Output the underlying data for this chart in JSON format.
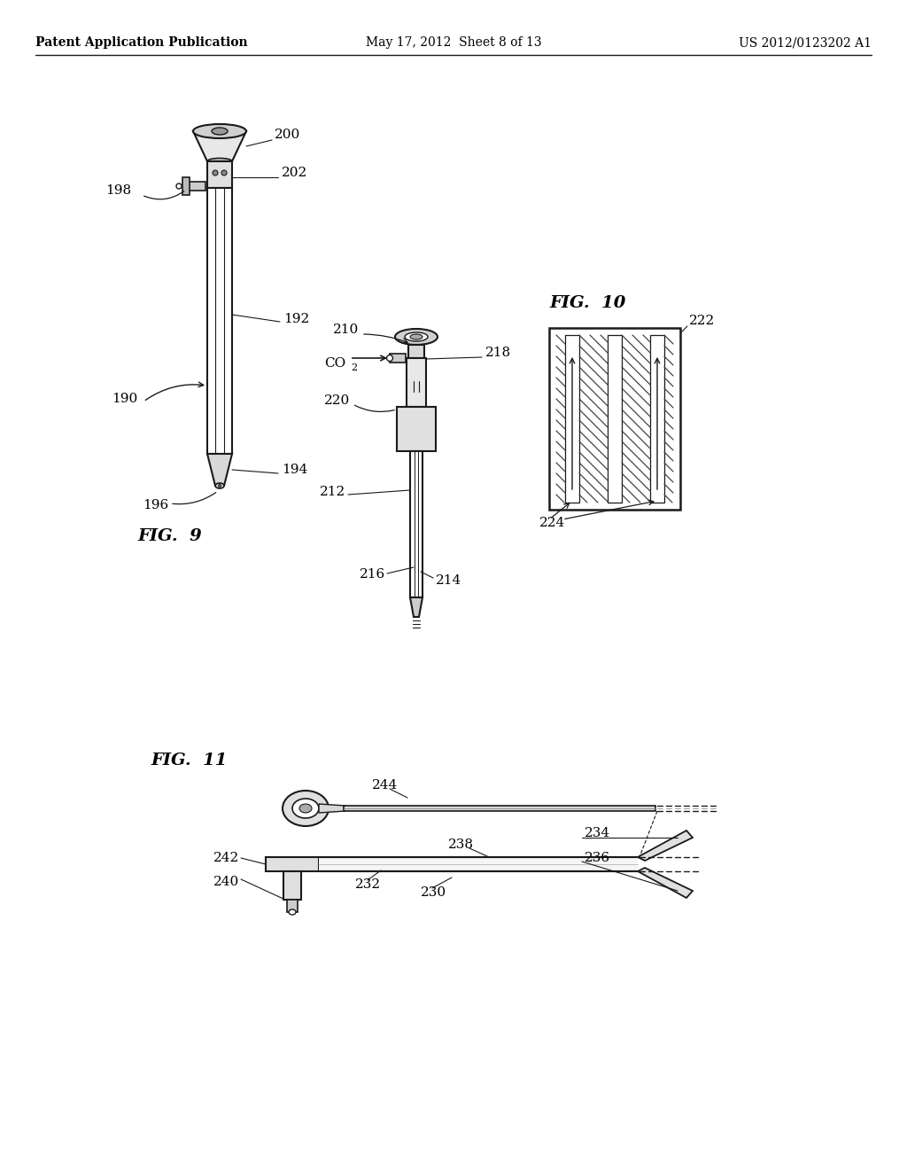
{
  "background_color": "#ffffff",
  "header_left": "Patent Application Publication",
  "header_center": "May 17, 2012  Sheet 8 of 13",
  "header_right": "US 2012/0123202 A1",
  "fig9_label": "FIG.  9",
  "fig10_label": "FIG.  10",
  "fig11_label": "FIG.  11",
  "line_color": "#1a1a1a",
  "text_color": "#000000"
}
